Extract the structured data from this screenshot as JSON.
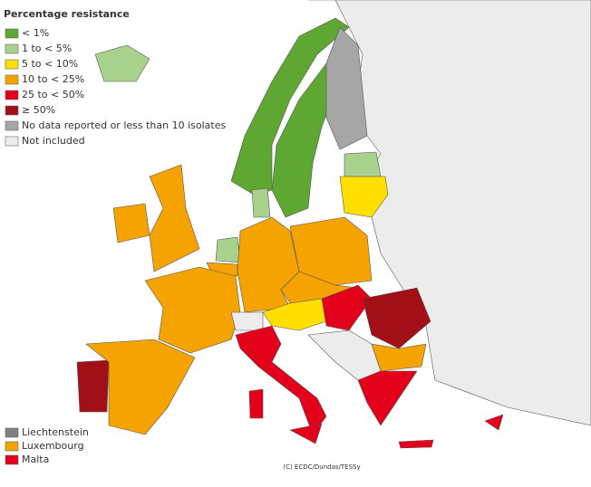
{
  "legend": {
    "title": "Percentage resistance",
    "items": [
      {
        "label": "< 1%",
        "color": "#5ea733"
      },
      {
        "label": "1 to < 5%",
        "color": "#a9d18e"
      },
      {
        "label": "5 to < 10%",
        "color": "#ffdf00"
      },
      {
        "label": "10 to < 25%",
        "color": "#f4a300"
      },
      {
        "label": "25 to < 50%",
        "color": "#e3001b"
      },
      {
        "label": "≥ 50%",
        "color": "#a30f17"
      },
      {
        "label": "No data reported or less than 10 isolates",
        "color": "#a6a6a6"
      },
      {
        "label": "Not included",
        "color": "#ececec"
      }
    ]
  },
  "small_countries": [
    {
      "label": "Liechtenstein",
      "color": "#7f7f7f"
    },
    {
      "label": "Luxembourg",
      "color": "#f4a300"
    },
    {
      "label": "Malta",
      "color": "#e3001b"
    }
  ],
  "credit": "(C) ECDC/Dundas/TESSy"
}
